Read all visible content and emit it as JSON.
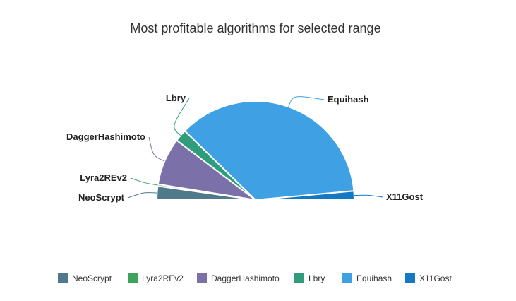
{
  "chart_data": {
    "type": "pie",
    "subtype": "semi-circle",
    "title": "Most profitable algorithms for selected range",
    "series": [
      {
        "name": "NeoScrypt",
        "value": 4.5,
        "color": "#4f7a8b"
      },
      {
        "name": "Lyra2REv2",
        "value": 0.6,
        "color": "#3ea35c"
      },
      {
        "name": "DaggerHashimoto",
        "value": 15.5,
        "color": "#7b70a8"
      },
      {
        "name": "Lbry",
        "value": 4.0,
        "color": "#2f9d7b"
      },
      {
        "name": "Equihash",
        "value": 72.5,
        "color": "#3fa0e4"
      },
      {
        "name": "X11Gost",
        "value": 2.9,
        "color": "#1479c4"
      }
    ],
    "legend": {
      "position": "bottom"
    }
  }
}
